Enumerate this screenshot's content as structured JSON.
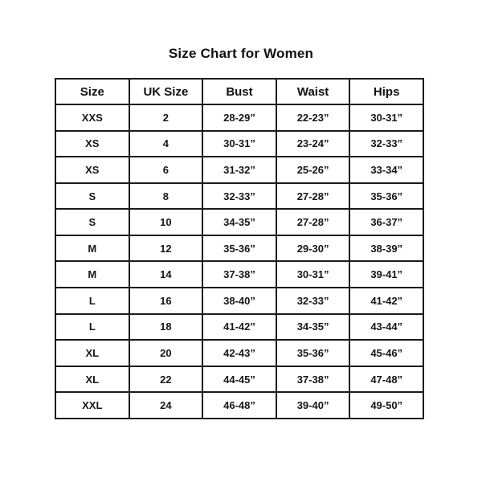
{
  "page": {
    "title": "Size Chart for Women"
  },
  "table": {
    "columns": [
      "Size",
      "UK Size",
      "Bust",
      "Waist",
      "Hips"
    ],
    "rows": [
      [
        "XXS",
        "2",
        "28-29”",
        "22-23”",
        "30-31”"
      ],
      [
        "XS",
        "4",
        "30-31”",
        "23-24”",
        "32-33”"
      ],
      [
        "XS",
        "6",
        "31-32”",
        "25-26”",
        "33-34”"
      ],
      [
        "S",
        "8",
        "32-33”",
        "27-28”",
        "35-36”"
      ],
      [
        "S",
        "10",
        "34-35”",
        "27-28”",
        "36-37”"
      ],
      [
        "M",
        "12",
        "35-36”",
        "29-30”",
        "38-39”"
      ],
      [
        "M",
        "14",
        "37-38”",
        "30-31”",
        "39-41”"
      ],
      [
        "L",
        "16",
        "38-40”",
        "32-33”",
        "41-42”"
      ],
      [
        "L",
        "18",
        "41-42”",
        "34-35”",
        "43-44”"
      ],
      [
        "XL",
        "20",
        "42-43”",
        "35-36”",
        "45-46”"
      ],
      [
        "XL",
        "22",
        "44-45”",
        "37-38”",
        "47-48”"
      ],
      [
        "XXL",
        "24",
        "46-48”",
        "39-40”",
        "49-50”"
      ]
    ]
  }
}
